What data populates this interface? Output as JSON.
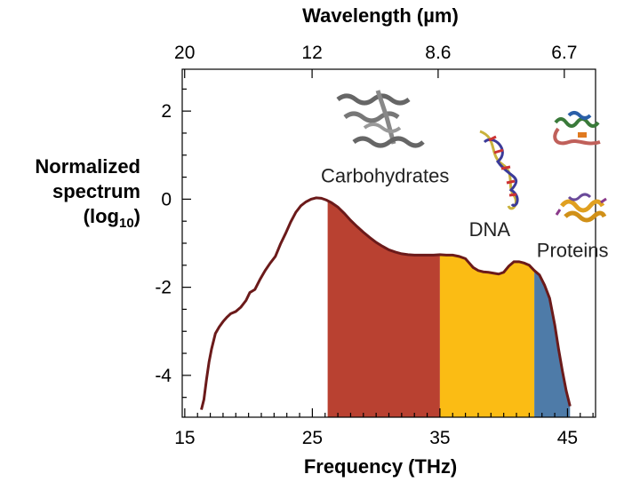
{
  "chart_data": {
    "type": "area",
    "title": "",
    "xlabel": "Frequency (THz)",
    "x2label": "Wavelength (µm)",
    "ylabel_lines": [
      "Normalized",
      "spectrum"
    ],
    "ylabel_log": {
      "prefix": "(log",
      "sub": "10",
      "suffix": ")"
    },
    "xlim": [
      14.8,
      47.2
    ],
    "ylim": [
      -4.95,
      2.95
    ],
    "xticks": [
      15,
      25,
      35,
      45
    ],
    "xtick_labels": [
      "15",
      "25",
      "35",
      "45"
    ],
    "yticks": [
      2,
      0,
      -2,
      -4
    ],
    "ytick_labels": [
      "2",
      "0",
      "-2",
      "-4"
    ],
    "top_ticks": [
      {
        "x": 14.99,
        "label": "20"
      },
      {
        "x": 24.98,
        "label": "12"
      },
      {
        "x": 34.86,
        "label": "8.6"
      },
      {
        "x": 44.75,
        "label": "6.7"
      }
    ],
    "grid": false,
    "series": [
      {
        "name": "Normalized spectrum",
        "color": "#6b1a1a",
        "x": [
          16.3,
          16.5,
          16.7,
          16.9,
          17.1,
          17.4,
          17.7,
          18.0,
          18.3,
          18.6,
          19.0,
          19.4,
          19.8,
          20.1,
          20.5,
          20.9,
          21.3,
          21.7,
          22.1,
          22.5,
          22.9,
          23.3,
          23.7,
          24.1,
          24.5,
          24.9,
          25.3,
          25.7,
          26.1,
          26.5,
          27.0,
          27.5,
          28.0,
          28.5,
          29.0,
          29.5,
          30.0,
          30.5,
          31.0,
          31.5,
          32.0,
          32.5,
          33.0,
          33.5,
          34.0,
          34.5,
          35.0,
          35.5,
          36.0,
          36.5,
          37.0,
          37.3,
          37.6,
          38.0,
          38.4,
          38.8,
          39.2,
          39.6,
          40.0,
          40.4,
          40.8,
          41.2,
          41.6,
          42.0,
          42.4,
          42.8,
          43.2,
          43.6,
          44.0,
          44.3,
          44.6,
          44.9,
          45.2
        ],
        "y": [
          -4.78,
          -4.55,
          -4.1,
          -3.7,
          -3.4,
          -3.05,
          -2.9,
          -2.78,
          -2.68,
          -2.6,
          -2.55,
          -2.45,
          -2.3,
          -2.12,
          -2.05,
          -1.82,
          -1.62,
          -1.45,
          -1.3,
          -1.02,
          -0.78,
          -0.52,
          -0.3,
          -0.15,
          -0.06,
          0.0,
          0.03,
          0.02,
          -0.02,
          -0.08,
          -0.18,
          -0.32,
          -0.48,
          -0.62,
          -0.75,
          -0.87,
          -0.98,
          -1.07,
          -1.15,
          -1.2,
          -1.24,
          -1.26,
          -1.27,
          -1.27,
          -1.27,
          -1.27,
          -1.26,
          -1.27,
          -1.27,
          -1.3,
          -1.35,
          -1.45,
          -1.55,
          -1.62,
          -1.65,
          -1.66,
          -1.68,
          -1.7,
          -1.66,
          -1.52,
          -1.42,
          -1.42,
          -1.45,
          -1.5,
          -1.62,
          -1.72,
          -1.95,
          -2.25,
          -2.85,
          -3.4,
          -3.9,
          -4.35,
          -4.7
        ]
      }
    ],
    "bands": [
      {
        "name": "Carbohydrates",
        "x_start": 26.2,
        "x_end": 35.0,
        "color": "#b94131"
      },
      {
        "name": "DNA",
        "x_start": 35.0,
        "x_end": 42.4,
        "color": "#fbbc14"
      },
      {
        "name": "Proteins",
        "x_start": 42.4,
        "x_end": 45.2,
        "color": "#4e7ba8"
      }
    ],
    "annotations": [
      {
        "text": "Carbohydrates",
        "x": 30.7,
        "y": 0.38
      },
      {
        "text": "DNA",
        "x": 38.9,
        "y": -0.84
      },
      {
        "text": "Proteins",
        "x": 45.4,
        "y": -1.31
      }
    ],
    "illustrations": [
      "carbohydrate-molecule",
      "dna-helix",
      "protein-structure-1",
      "protein-structure-2"
    ]
  }
}
